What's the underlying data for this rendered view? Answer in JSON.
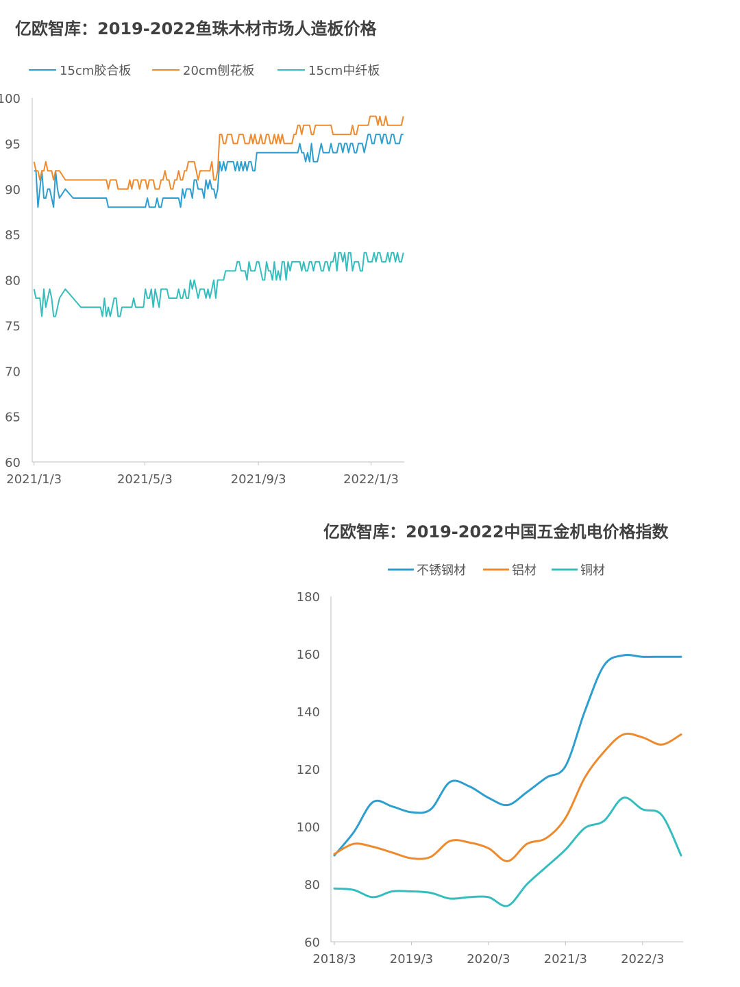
{
  "chart_data": [
    {
      "type": "line",
      "title": "亿欧智库：2019-2022鱼珠木材市场人造板价格",
      "legend_position": "top",
      "x_ticks": [
        "2021/1/3",
        "2021/5/3",
        "2021/9/3",
        "2022/1/3"
      ],
      "x_range": [
        "2021-01-01",
        "2022-02-08"
      ],
      "ylim": [
        60,
        100
      ],
      "y_ticks": [
        60,
        65,
        70,
        75,
        80,
        85,
        90,
        95,
        100
      ],
      "grid": false,
      "series": [
        {
          "name": "15cm胶合板",
          "color": "#2E9ECF",
          "base": 90,
          "values_by_period": [
            [
              92,
              88
            ],
            [
              89,
              89
            ],
            [
              88,
              88
            ],
            [
              89,
              88
            ],
            [
              91,
              89
            ],
            [
              93,
              92
            ],
            [
              94,
              94
            ],
            [
              95,
              93
            ],
            [
              95,
              94
            ],
            [
              96,
              95
            ]
          ]
        },
        {
          "name": "20cm刨花板",
          "color": "#EE8A2E",
          "base": 92,
          "values_by_period": [
            [
              93,
              91
            ],
            [
              91,
              91
            ],
            [
              91,
              90
            ],
            [
              92,
              90
            ],
            [
              93,
              91
            ],
            [
              96,
              95
            ],
            [
              96,
              95
            ],
            [
              97,
              96
            ],
            [
              97,
              96
            ],
            [
              98,
              97
            ]
          ]
        },
        {
          "name": "15cm中纤板",
          "color": "#35BDBD",
          "base": 78,
          "values_by_period": [
            [
              79,
              76
            ],
            [
              78,
              76
            ],
            [
              78,
              76
            ],
            [
              79,
              77
            ],
            [
              80,
              78
            ],
            [
              82,
              80
            ],
            [
              82,
              80
            ],
            [
              82,
              81
            ],
            [
              83,
              81
            ],
            [
              83,
              82
            ]
          ]
        }
      ]
    },
    {
      "type": "line",
      "title": "亿欧智库：2019-2022中国五金机电价格指数",
      "legend_position": "top",
      "x_ticks": [
        "2018/3",
        "2019/3",
        "2020/3",
        "2021/3",
        "2022/3"
      ],
      "ylim": [
        60,
        180
      ],
      "y_ticks": [
        60,
        80,
        100,
        120,
        140,
        160,
        180
      ],
      "grid": false,
      "x": [
        "2018/3",
        "2018/6",
        "2018/9",
        "2018/12",
        "2019/3",
        "2019/6",
        "2019/9",
        "2019/12",
        "2020/3",
        "2020/6",
        "2020/9",
        "2020/12",
        "2021/3",
        "2021/6",
        "2021/9",
        "2021/12",
        "2022/3",
        "2022/6",
        "2022/9"
      ],
      "series": [
        {
          "name": "不锈钢材",
          "color": "#2E9ECF",
          "values": [
            90,
            98,
            108.5,
            107,
            105,
            106,
            115.5,
            114,
            110,
            107.5,
            112,
            117,
            121,
            140,
            156,
            159.5,
            159,
            159,
            159
          ]
        },
        {
          "name": "铝材",
          "color": "#EE8A2E",
          "values": [
            90.5,
            94,
            93,
            91,
            89,
            89.5,
            95,
            94.5,
            92.5,
            88,
            94,
            96,
            103,
            117,
            126,
            132,
            131,
            128.5,
            132
          ]
        },
        {
          "name": "铜材",
          "color": "#35BDBD",
          "values": [
            78.5,
            78,
            75.5,
            77.5,
            77.5,
            77,
            75,
            75.5,
            75.5,
            72.5,
            80,
            86,
            92,
            99.5,
            102,
            110,
            106,
            104,
            90
          ]
        }
      ]
    }
  ]
}
